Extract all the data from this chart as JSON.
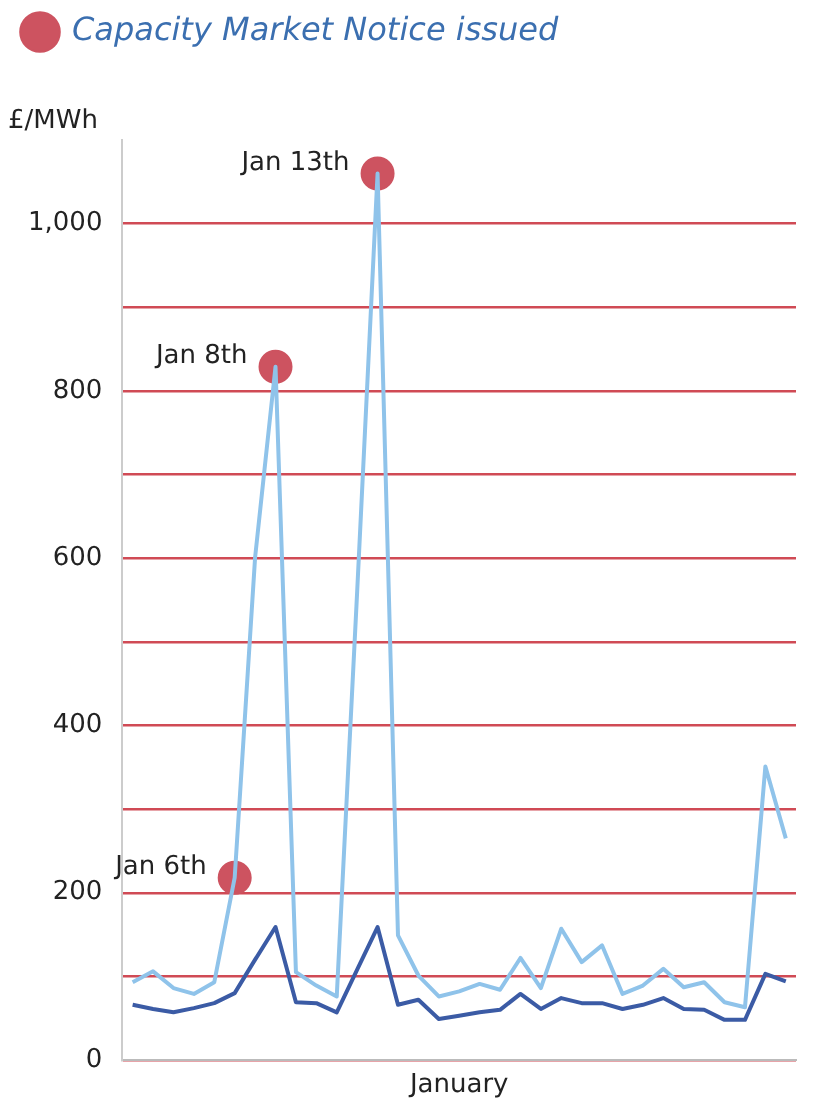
{
  "chart_data": {
    "type": "line",
    "xlabel": "January",
    "ylabel": "£/MWh",
    "categories": [
      null,
      null,
      null,
      null,
      null,
      null,
      null,
      null,
      null,
      null,
      null,
      null,
      null,
      null,
      null,
      null,
      null,
      null,
      null,
      null,
      null,
      null,
      null,
      null,
      null,
      null,
      null,
      null,
      null,
      null,
      null,
      null,
      null
    ],
    "tick_labels": "y",
    "ylim": [
      0,
      1100
    ],
    "yticks": [
      0,
      {
        "value": 100,
        "label": null
      },
      200,
      {
        "value": 300,
        "label": null
      },
      400,
      {
        "value": 500,
        "label": null
      },
      600,
      {
        "value": 700,
        "label": null
      },
      800,
      {
        "value": 900,
        "label": null
      },
      {
        "value": 1000,
        "label": "1,000"
      }
    ],
    "grid": "y",
    "legend": "top left",
    "marker": "none",
    "series": [
      {
        "color": "#8fc3ea",
        "values": [
          93,
          106,
          86,
          79,
          93,
          218,
          601,
          829,
          105,
          89,
          76,
          560,
          1060,
          149,
          101,
          76,
          82,
          91,
          84,
          122,
          86,
          157,
          117,
          137,
          79,
          89,
          109,
          87,
          93,
          69,
          63,
          351,
          265
        ]
      },
      {
        "color": "#3b5ba5",
        "values": [
          66,
          61,
          57,
          62,
          68,
          80,
          120,
          159,
          69,
          68,
          57,
          108,
          159,
          66,
          72,
          49,
          53,
          57,
          60,
          79,
          61,
          74,
          68,
          68,
          61,
          66,
          74,
          61,
          60,
          48,
          48,
          103,
          94
        ]
      },
      {
        "type": "scatter",
        "name": "Capacity Market Notice issued",
        "color": "#cd5360",
        "marker": "circle",
        "values": [
          null,
          null,
          null,
          null,
          null,
          218,
          null,
          829,
          null,
          null,
          null,
          null,
          1060,
          null,
          null,
          null,
          null,
          null,
          null,
          null,
          null,
          null,
          null,
          null,
          null,
          null,
          null,
          null,
          null,
          null,
          null,
          null,
          null
        ]
      }
    ],
    "annotations": [
      "Jan 6th",
      "Jan 8th",
      "Jan 13th"
    ]
  }
}
